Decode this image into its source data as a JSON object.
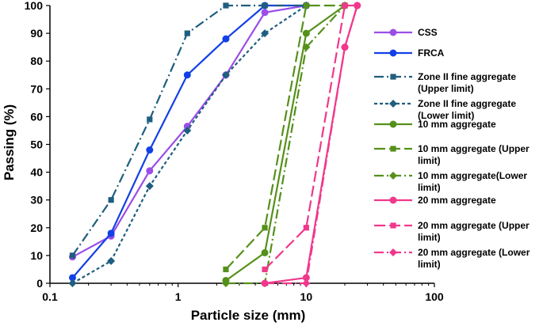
{
  "chart_data": {
    "type": "line",
    "title": "",
    "xlabel": "Particle size (mm)",
    "ylabel": "Passing (%)",
    "xscale": "log",
    "xlim": [
      0.1,
      100
    ],
    "ylim": [
      0,
      100
    ],
    "x_ticks": [
      0.1,
      1,
      10,
      100
    ],
    "x_tick_labels": [
      "0.1",
      "1",
      "10",
      "100"
    ],
    "y_ticks": [
      0,
      10,
      20,
      30,
      40,
      50,
      60,
      70,
      80,
      90,
      100
    ],
    "grid": false,
    "legend_position": "right",
    "series": [
      {
        "name": "CSS",
        "legend_lines": [
          "CSS"
        ],
        "color": "#9B4DE8",
        "dash": "solid",
        "marker": "circle",
        "x": [
          0.15,
          0.3,
          0.6,
          1.18,
          2.36,
          4.75,
          10
        ],
        "y": [
          9.5,
          17,
          40.5,
          56.5,
          75,
          97.5,
          100
        ]
      },
      {
        "name": "FRCA",
        "legend_lines": [
          "FRCA"
        ],
        "color": "#1240E6",
        "dash": "solid",
        "marker": "circle",
        "x": [
          0.15,
          0.3,
          0.6,
          1.18,
          2.36,
          4.75,
          10
        ],
        "y": [
          2,
          18,
          48,
          75,
          88,
          100,
          100
        ]
      },
      {
        "name": "Zone II fine aggregate (Upper limit)",
        "legend_lines": [
          "Zone II fine aggregate",
          "(Upper limit)"
        ],
        "color": "#1F5E7E",
        "dash": "dashdot",
        "marker": "square",
        "x": [
          0.15,
          0.3,
          0.6,
          1.18,
          2.36,
          4.75,
          10
        ],
        "y": [
          10,
          30,
          59,
          90,
          100,
          100,
          100
        ]
      },
      {
        "name": "Zone II fine aggregate (Lower limit)",
        "legend_lines": [
          "Zone II fine aggregate",
          "(Lower limit)"
        ],
        "color": "#1F5E7E",
        "dash": "dashed",
        "marker": "diamond",
        "x": [
          0.15,
          0.3,
          0.6,
          1.18,
          2.36,
          4.75,
          10
        ],
        "y": [
          0,
          8,
          35,
          55,
          75,
          90,
          100
        ]
      },
      {
        "name": "10 mm aggregate",
        "legend_lines": [
          "10 mm aggregate"
        ],
        "color": "#55901A",
        "dash": "solid",
        "marker": "circle",
        "x": [
          2.36,
          4.75,
          10,
          20
        ],
        "y": [
          1,
          11,
          90,
          100
        ]
      },
      {
        "name": "10 mm aggregate (Upper limit)",
        "legend_lines": [
          "10 mm aggregate (Upper",
          "limit)"
        ],
        "color": "#55901A",
        "dash": "longdash",
        "marker": "square",
        "x": [
          2.36,
          4.75,
          10,
          20
        ],
        "y": [
          5,
          20,
          100,
          100
        ]
      },
      {
        "name": "10 mm aggregate(Lower limit)",
        "legend_lines": [
          "10 mm aggregate(Lower",
          "limit)"
        ],
        "color": "#55901A",
        "dash": "dashdot",
        "marker": "diamond",
        "x": [
          2.36,
          4.75,
          10,
          20
        ],
        "y": [
          0,
          0,
          85,
          100
        ]
      },
      {
        "name": "20 mm aggregate",
        "legend_lines": [
          "20 mm aggregate"
        ],
        "color": "#F0388C",
        "dash": "solid",
        "marker": "circle",
        "x": [
          4.75,
          10,
          20,
          25
        ],
        "y": [
          0,
          2,
          85,
          100
        ]
      },
      {
        "name": "20 mm aggregate (Upper limit)",
        "legend_lines": [
          "20 mm aggregate (Upper",
          "limit)"
        ],
        "color": "#F0388C",
        "dash": "longdash",
        "marker": "square",
        "x": [
          4.75,
          10,
          20,
          25
        ],
        "y": [
          5,
          20,
          100,
          100
        ]
      },
      {
        "name": "20 mm aggregate (Lower limit)",
        "legend_lines": [
          "20 mm aggregate (Lower",
          "limit)"
        ],
        "color": "#F0388C",
        "dash": "dashdot",
        "marker": "diamond",
        "x": [
          4.75,
          10,
          20,
          25
        ],
        "y": [
          0,
          0,
          85,
          100
        ]
      }
    ]
  }
}
